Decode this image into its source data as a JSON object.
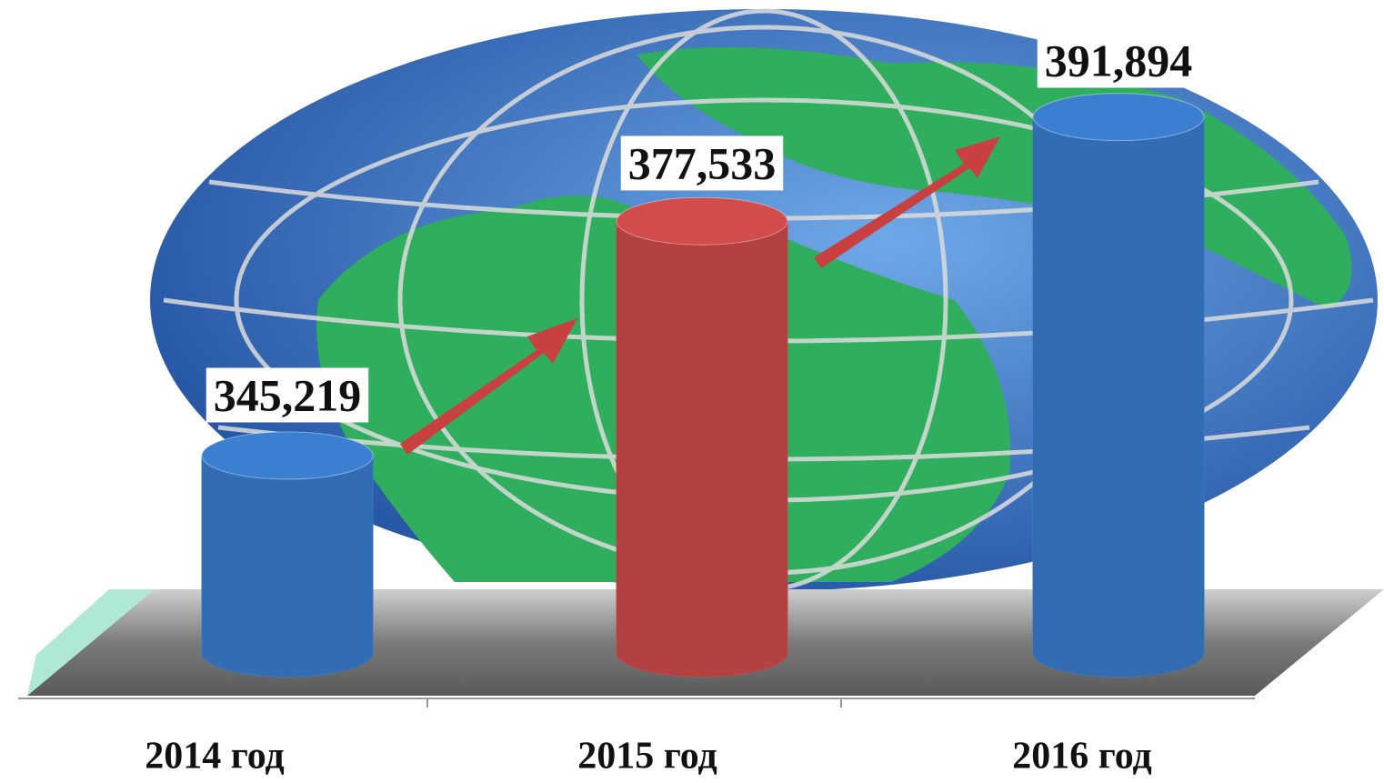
{
  "chart_data": {
    "type": "bar",
    "categories": [
      "2014 год",
      "2015 год",
      "2016 год"
    ],
    "values": [
      345.219,
      377.533,
      391.894
    ],
    "value_labels": [
      "345,219",
      "377,533",
      "391,894"
    ],
    "colors": [
      "#3a7fd2",
      "#d24c4c",
      "#3a7fd2"
    ],
    "ylim": [
      318,
      400
    ]
  }
}
